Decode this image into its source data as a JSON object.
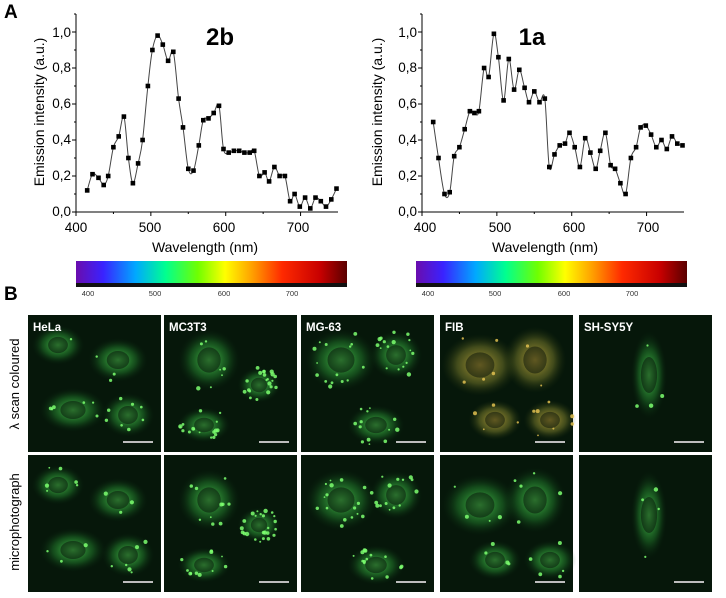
{
  "panel_a": {
    "letter": "A",
    "x_ticks": [
      "400",
      "500",
      "600",
      "700"
    ],
    "y_ticks": [
      "0,0",
      "0,2",
      "0,4",
      "0,6",
      "0,8",
      "1,0"
    ],
    "spectrum_ticks": [
      "400",
      "500",
      "600",
      "700"
    ]
  },
  "chart_data": [
    {
      "type": "line",
      "title": "2b",
      "xlabel": "Wavelength (nm)",
      "ylabel": "Emission intensity (a.u.)",
      "xlim": [
        400,
        750
      ],
      "ylim": [
        0,
        1.1
      ],
      "x_ticks": [
        400,
        500,
        600,
        700
      ],
      "y_ticks": [
        0.0,
        0.2,
        0.4,
        0.6,
        0.8,
        1.0
      ],
      "marker": "square",
      "series": [
        {
          "x": [
            415,
            422,
            430,
            437,
            443,
            450,
            457,
            464,
            470,
            476,
            483,
            489,
            496,
            502,
            509,
            516,
            523,
            530,
            537,
            543,
            550,
            557,
            564,
            570,
            577,
            584,
            591,
            597,
            604,
            611,
            618,
            625,
            632,
            638,
            645,
            652,
            658,
            665,
            672,
            679,
            686,
            692,
            699,
            706,
            713,
            720,
            727,
            734,
            741,
            748
          ],
          "y": [
            0.12,
            0.21,
            0.19,
            0.15,
            0.2,
            0.36,
            0.42,
            0.53,
            0.3,
            0.16,
            0.27,
            0.4,
            0.7,
            0.9,
            0.98,
            0.93,
            0.84,
            0.89,
            0.63,
            0.47,
            0.24,
            0.23,
            0.37,
            0.51,
            0.52,
            0.55,
            0.59,
            0.35,
            0.33,
            0.34,
            0.34,
            0.33,
            0.33,
            0.34,
            0.2,
            0.22,
            0.17,
            0.25,
            0.2,
            0.2,
            0.06,
            0.1,
            0.03,
            0.08,
            0.02,
            0.08,
            0.06,
            0.03,
            0.07,
            0.13
          ]
        }
      ]
    },
    {
      "type": "line",
      "title": "1a",
      "xlabel": "Wavelength (nm)",
      "ylabel": "Emission intensity (a.u.)",
      "xlim": [
        400,
        750
      ],
      "ylim": [
        0,
        1.1
      ],
      "x_ticks": [
        400,
        500,
        600,
        700
      ],
      "y_ticks": [
        0.0,
        0.2,
        0.4,
        0.6,
        0.8,
        1.0
      ],
      "marker": "square",
      "series": [
        {
          "x": [
            415,
            422,
            430,
            437,
            443,
            450,
            457,
            464,
            470,
            476,
            483,
            489,
            496,
            502,
            509,
            516,
            523,
            530,
            537,
            543,
            550,
            557,
            564,
            570,
            577,
            584,
            591,
            597,
            604,
            611,
            618,
            625,
            632,
            638,
            645,
            652,
            658,
            665,
            672,
            679,
            686,
            692,
            699,
            706,
            713,
            720,
            727,
            734,
            741,
            748
          ],
          "y": [
            0.5,
            0.3,
            0.1,
            0.11,
            0.31,
            0.36,
            0.46,
            0.56,
            0.55,
            0.56,
            0.8,
            0.75,
            0.99,
            0.86,
            0.62,
            0.85,
            0.68,
            0.79,
            0.69,
            0.61,
            0.67,
            0.61,
            0.63,
            0.25,
            0.32,
            0.37,
            0.38,
            0.44,
            0.36,
            0.25,
            0.41,
            0.33,
            0.24,
            0.34,
            0.44,
            0.26,
            0.24,
            0.16,
            0.1,
            0.3,
            0.36,
            0.47,
            0.48,
            0.43,
            0.36,
            0.4,
            0.35,
            0.42,
            0.38,
            0.37
          ]
        }
      ]
    }
  ],
  "panel_b": {
    "letter": "B",
    "row_labels": [
      "λ scan coloured",
      "microphotograph"
    ],
    "columns": [
      {
        "label": "HeLa"
      },
      {
        "label": "MC3T3"
      },
      {
        "label": "MG-63"
      },
      {
        "label": "FIB"
      },
      {
        "label": "SH-SY5Y"
      }
    ]
  },
  "colors": {
    "spectrum": [
      "#6a0dad",
      "#2f3aff",
      "#00b4ff",
      "#00ff80",
      "#40ff00",
      "#ffff00",
      "#ff9000",
      "#ff2000",
      "#c00000",
      "#600000"
    ],
    "cell_green": "#36d044",
    "cell_bg": "#06170a",
    "fib_tint": "#a08a3a"
  }
}
